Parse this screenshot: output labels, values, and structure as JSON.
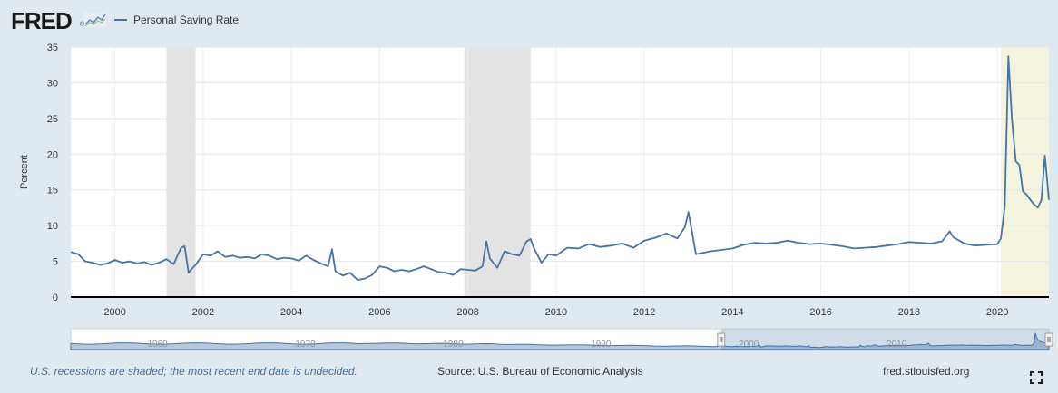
{
  "header": {
    "logo_text": "FRED",
    "logo_registered": "®",
    "logo_icon": "fred-chart-icon"
  },
  "footer": {
    "note": "U.S. recessions are shaded; the most recent end date is undecided.",
    "source": "Source: U.S. Bureau of Economic Analysis",
    "site": "fred.stlouisfed.org",
    "fullscreen_icon": "fullscreen-icon"
  },
  "colors": {
    "line": "#4572a7",
    "recession": "#e3e3e3",
    "recent_recession": "#f4f4de",
    "background": "#e1e9f0",
    "plot": "#ffffff",
    "navigator": "#4572a7"
  },
  "chart_data": {
    "type": "line",
    "title": "",
    "xlabel": "",
    "ylabel": "Percent",
    "xlim": [
      1999.0,
      2021.17
    ],
    "ylim": [
      0,
      35
    ],
    "y_ticks": [
      0,
      5,
      10,
      15,
      20,
      25,
      30,
      35
    ],
    "x_ticks": [
      "2000",
      "2002",
      "2004",
      "2006",
      "2008",
      "2010",
      "2012",
      "2014",
      "2016",
      "2018",
      "2020"
    ],
    "grid": true,
    "legend_position": "top-left",
    "series": [
      {
        "name": "Personal Saving Rate",
        "color": "#4572a7",
        "x": [
          1999.0,
          1999.17,
          1999.33,
          1999.5,
          1999.67,
          1999.83,
          2000.0,
          2000.17,
          2000.33,
          2000.5,
          2000.67,
          2000.83,
          2001.0,
          2001.17,
          2001.33,
          2001.5,
          2001.58,
          2001.67,
          2001.75,
          2001.83,
          2002.0,
          2002.17,
          2002.33,
          2002.5,
          2002.67,
          2002.83,
          2003.0,
          2003.17,
          2003.33,
          2003.5,
          2003.67,
          2003.83,
          2004.0,
          2004.17,
          2004.33,
          2004.5,
          2004.67,
          2004.83,
          2004.92,
          2005.0,
          2005.17,
          2005.33,
          2005.5,
          2005.67,
          2005.83,
          2006.0,
          2006.17,
          2006.33,
          2006.5,
          2006.67,
          2006.83,
          2007.0,
          2007.17,
          2007.33,
          2007.5,
          2007.67,
          2007.83,
          2008.0,
          2008.17,
          2008.33,
          2008.42,
          2008.5,
          2008.67,
          2008.83,
          2009.0,
          2009.17,
          2009.33,
          2009.42,
          2009.5,
          2009.67,
          2009.83,
          2010.0,
          2010.25,
          2010.5,
          2010.75,
          2011.0,
          2011.25,
          2011.5,
          2011.75,
          2012.0,
          2012.25,
          2012.5,
          2012.75,
          2012.92,
          2013.0,
          2013.17,
          2013.5,
          2013.75,
          2014.0,
          2014.25,
          2014.5,
          2014.75,
          2015.0,
          2015.25,
          2015.5,
          2015.75,
          2016.0,
          2016.25,
          2016.5,
          2016.75,
          2017.0,
          2017.25,
          2017.5,
          2017.75,
          2018.0,
          2018.25,
          2018.5,
          2018.75,
          2018.92,
          2019.0,
          2019.25,
          2019.5,
          2019.75,
          2020.0,
          2020.08,
          2020.17,
          2020.25,
          2020.33,
          2020.42,
          2020.5,
          2020.58,
          2020.67,
          2020.75,
          2020.83,
          2020.92,
          2021.0,
          2021.08,
          2021.17
        ],
        "values": [
          6.3,
          6.0,
          5.0,
          4.8,
          4.5,
          4.7,
          5.2,
          4.8,
          5.0,
          4.7,
          4.9,
          4.5,
          4.8,
          5.3,
          4.6,
          6.9,
          7.1,
          3.4,
          4.0,
          4.5,
          6.0,
          5.8,
          6.4,
          5.6,
          5.8,
          5.5,
          5.6,
          5.4,
          6.0,
          5.8,
          5.3,
          5.5,
          5.4,
          5.1,
          5.8,
          5.2,
          4.7,
          4.3,
          6.7,
          3.6,
          3.0,
          3.4,
          2.4,
          2.6,
          3.1,
          4.3,
          4.1,
          3.6,
          3.8,
          3.6,
          3.9,
          4.3,
          3.9,
          3.5,
          3.4,
          3.1,
          3.9,
          3.8,
          3.7,
          4.3,
          7.8,
          5.4,
          4.1,
          6.4,
          6.0,
          5.8,
          7.8,
          8.1,
          6.8,
          4.8,
          6.0,
          5.8,
          6.9,
          6.8,
          7.4,
          7.0,
          7.2,
          7.5,
          6.9,
          7.9,
          8.3,
          8.9,
          8.2,
          9.8,
          11.9,
          6.0,
          6.4,
          6.6,
          6.8,
          7.3,
          7.6,
          7.5,
          7.6,
          7.9,
          7.6,
          7.4,
          7.5,
          7.3,
          7.1,
          6.8,
          6.9,
          7.0,
          7.2,
          7.4,
          7.7,
          7.6,
          7.5,
          7.8,
          9.2,
          8.4,
          7.5,
          7.2,
          7.3,
          7.4,
          8.2,
          12.7,
          33.7,
          24.9,
          19.0,
          18.5,
          14.8,
          14.3,
          13.6,
          13.0,
          12.5,
          13.6,
          19.8,
          13.6
        ]
      }
    ],
    "recessions": [
      [
        2001.17,
        2001.83
      ],
      [
        2007.92,
        2009.42
      ]
    ],
    "recent_recession": [
      2020.08,
      2021.17
    ],
    "navigator": {
      "x_labels": [
        "1960",
        "1970",
        "1980",
        "1990",
        "2000",
        "2010"
      ],
      "selected_range": [
        1999.0,
        2021.17
      ]
    }
  }
}
